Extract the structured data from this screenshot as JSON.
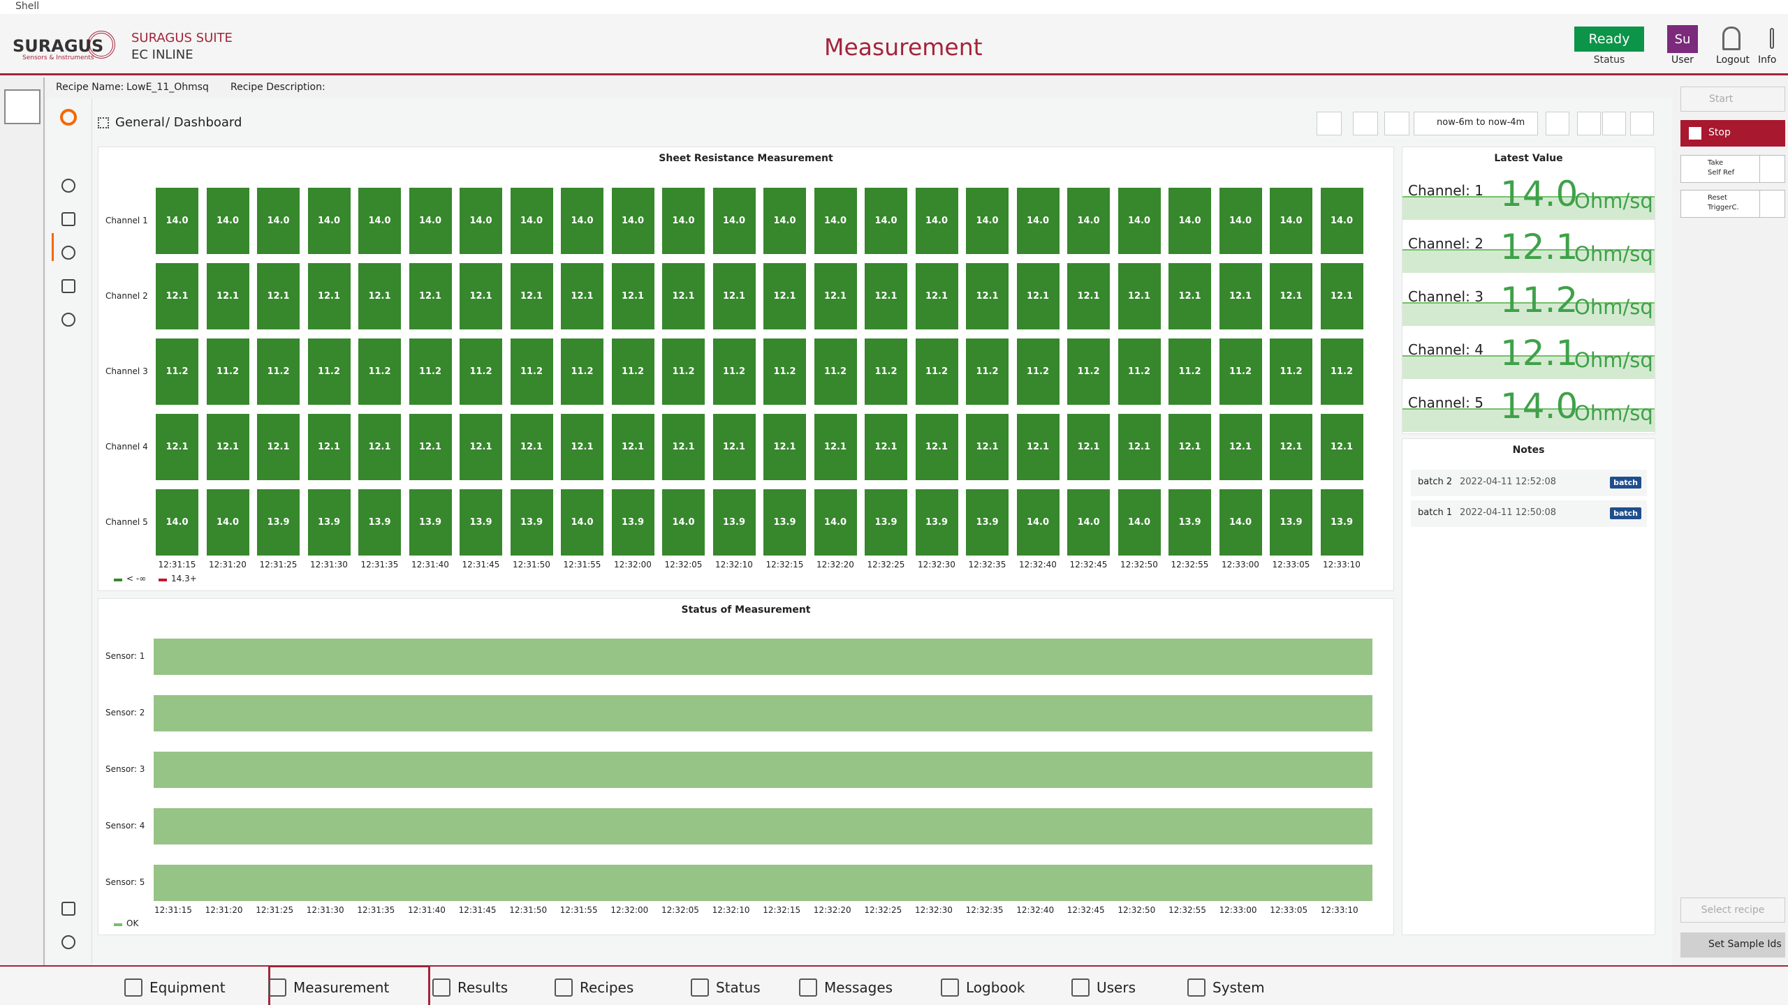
{
  "window": {
    "title": "Shell"
  },
  "header": {
    "brand": "SURAGUS",
    "brand_sub": "Sensors & Instruments",
    "suite": "SURAGUS SUITE",
    "product": "EC INLINE",
    "title": "Measurement",
    "status": "Ready",
    "status_label": "Status",
    "user": "Su",
    "user_label": "User",
    "logout": "Logout",
    "info": "Info"
  },
  "recipe": {
    "name_label": "Recipe Name:",
    "name": "LowE_11_Ohmsq",
    "desc_label": "Recipe Description:"
  },
  "breadcrumb": {
    "folder": "General",
    "dashboard": "/ Dashboard",
    "time_range": "now-6m to now-4m"
  },
  "times": [
    "12:31:15",
    "12:31:20",
    "12:31:25",
    "12:31:30",
    "12:31:35",
    "12:31:40",
    "12:31:45",
    "12:31:50",
    "12:31:55",
    "12:32:00",
    "12:32:05",
    "12:32:10",
    "12:32:15",
    "12:32:20",
    "12:32:25",
    "12:32:30",
    "12:32:35",
    "12:32:40",
    "12:32:45",
    "12:32:50",
    "12:32:55",
    "12:33:00",
    "12:33:05",
    "12:33:10"
  ],
  "heatmap": {
    "title": "Sheet Resistance Measurement",
    "channels": [
      "Channel 1",
      "Channel 2",
      "Channel 3",
      "Channel 4",
      "Channel 5"
    ],
    "values": [
      [
        "14.0",
        "14.0",
        "14.0",
        "14.0",
        "14.0",
        "14.0",
        "14.0",
        "14.0",
        "14.0",
        "14.0",
        "14.0",
        "14.0",
        "14.0",
        "14.0",
        "14.0",
        "14.0",
        "14.0",
        "14.0",
        "14.0",
        "14.0",
        "14.0",
        "14.0",
        "14.0",
        "14.0"
      ],
      [
        "12.1",
        "12.1",
        "12.1",
        "12.1",
        "12.1",
        "12.1",
        "12.1",
        "12.1",
        "12.1",
        "12.1",
        "12.1",
        "12.1",
        "12.1",
        "12.1",
        "12.1",
        "12.1",
        "12.1",
        "12.1",
        "12.1",
        "12.1",
        "12.1",
        "12.1",
        "12.1",
        "12.1"
      ],
      [
        "11.2",
        "11.2",
        "11.2",
        "11.2",
        "11.2",
        "11.2",
        "11.2",
        "11.2",
        "11.2",
        "11.2",
        "11.2",
        "11.2",
        "11.2",
        "11.2",
        "11.2",
        "11.2",
        "11.2",
        "11.2",
        "11.2",
        "11.2",
        "11.2",
        "11.2",
        "11.2",
        "11.2"
      ],
      [
        "12.1",
        "12.1",
        "12.1",
        "12.1",
        "12.1",
        "12.1",
        "12.1",
        "12.1",
        "12.1",
        "12.1",
        "12.1",
        "12.1",
        "12.1",
        "12.1",
        "12.1",
        "12.1",
        "12.1",
        "12.1",
        "12.1",
        "12.1",
        "12.1",
        "12.1",
        "12.1",
        "12.1"
      ],
      [
        "14.0",
        "14.0",
        "13.9",
        "13.9",
        "13.9",
        "13.9",
        "13.9",
        "13.9",
        "14.0",
        "13.9",
        "14.0",
        "13.9",
        "13.9",
        "14.0",
        "13.9",
        "13.9",
        "13.9",
        "14.0",
        "14.0",
        "14.0",
        "13.9",
        "14.0",
        "13.9",
        "13.9"
      ]
    ],
    "legend": [
      {
        "label": "< -∞",
        "color": "#37872d"
      },
      {
        "label": "14.3+",
        "color": "#c4162a"
      }
    ]
  },
  "status": {
    "title": "Status of Measurement",
    "sensors": [
      "Sensor: 1",
      "Sensor: 2",
      "Sensor: 3",
      "Sensor: 4",
      "Sensor: 5"
    ],
    "legend": "OK"
  },
  "latest": {
    "title": "Latest Value",
    "rows": [
      {
        "label": "Channel: 1",
        "value": "14.0",
        "unit": "Ohm/sq"
      },
      {
        "label": "Channel: 2",
        "value": "12.1",
        "unit": "Ohm/sq"
      },
      {
        "label": "Channel: 3",
        "value": "11.2",
        "unit": "Ohm/sq"
      },
      {
        "label": "Channel: 4",
        "value": "12.1",
        "unit": "Ohm/sq"
      },
      {
        "label": "Channel: 5",
        "value": "14.0",
        "unit": "Ohm/sq"
      }
    ]
  },
  "notes": {
    "title": "Notes",
    "items": [
      {
        "name": "batch 2",
        "time": "2022-04-11 12:52:08",
        "tag": "batch"
      },
      {
        "name": "batch 1",
        "time": "2022-04-11 12:50:08",
        "tag": "batch"
      }
    ]
  },
  "controls": {
    "start": "Start",
    "stop": "Stop",
    "take": [
      "Take",
      "Self Ref"
    ],
    "reset": [
      "Reset",
      "TriggerC."
    ],
    "select_recipe": "Select recipe",
    "set_sample": "Set Sample Ids"
  },
  "tabs": [
    "Equipment",
    "Measurement",
    "Results",
    "Recipes",
    "Status",
    "Messages",
    "Logbook",
    "Users",
    "System"
  ]
}
